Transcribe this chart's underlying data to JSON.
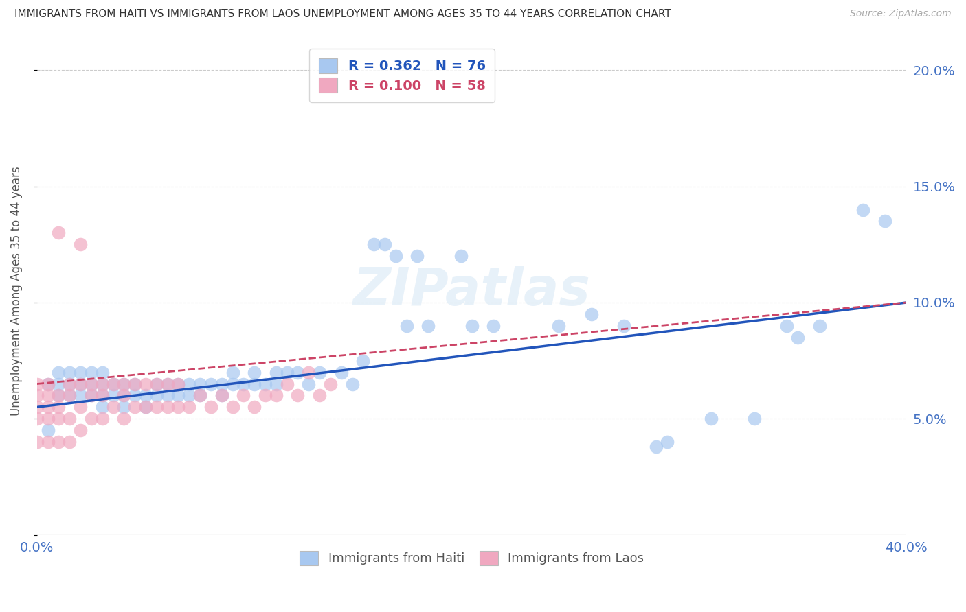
{
  "title": "IMMIGRANTS FROM HAITI VS IMMIGRANTS FROM LAOS UNEMPLOYMENT AMONG AGES 35 TO 44 YEARS CORRELATION CHART",
  "source": "Source: ZipAtlas.com",
  "ylabel": "Unemployment Among Ages 35 to 44 years",
  "xlim": [
    0.0,
    0.4
  ],
  "ylim": [
    0.0,
    0.21
  ],
  "xticks": [
    0.0,
    0.05,
    0.1,
    0.15,
    0.2,
    0.25,
    0.3,
    0.35,
    0.4
  ],
  "yticks": [
    0.0,
    0.05,
    0.1,
    0.15,
    0.2
  ],
  "haiti_color": "#a8c8f0",
  "laos_color": "#f0a8c0",
  "haiti_line_color": "#2255bb",
  "laos_line_color": "#cc4466",
  "haiti_R": 0.362,
  "haiti_N": 76,
  "laos_R": 0.1,
  "laos_N": 58,
  "haiti_x": [
    0.005,
    0.005,
    0.01,
    0.01,
    0.01,
    0.015,
    0.015,
    0.015,
    0.02,
    0.02,
    0.02,
    0.025,
    0.025,
    0.025,
    0.03,
    0.03,
    0.03,
    0.03,
    0.035,
    0.035,
    0.04,
    0.04,
    0.04,
    0.045,
    0.045,
    0.05,
    0.05,
    0.055,
    0.055,
    0.06,
    0.06,
    0.065,
    0.065,
    0.07,
    0.07,
    0.075,
    0.075,
    0.08,
    0.085,
    0.085,
    0.09,
    0.09,
    0.095,
    0.1,
    0.1,
    0.105,
    0.11,
    0.11,
    0.115,
    0.12,
    0.125,
    0.13,
    0.14,
    0.145,
    0.15,
    0.155,
    0.16,
    0.165,
    0.17,
    0.18,
    0.2,
    0.21,
    0.24,
    0.27,
    0.29,
    0.31,
    0.33,
    0.35,
    0.36,
    0.38,
    0.39,
    0.285,
    0.345,
    0.195,
    0.255,
    0.175
  ],
  "haiti_y": [
    0.065,
    0.045,
    0.06,
    0.065,
    0.07,
    0.06,
    0.065,
    0.07,
    0.06,
    0.065,
    0.07,
    0.06,
    0.065,
    0.07,
    0.055,
    0.06,
    0.065,
    0.07,
    0.06,
    0.065,
    0.055,
    0.06,
    0.065,
    0.06,
    0.065,
    0.055,
    0.06,
    0.06,
    0.065,
    0.06,
    0.065,
    0.06,
    0.065,
    0.06,
    0.065,
    0.06,
    0.065,
    0.065,
    0.06,
    0.065,
    0.065,
    0.07,
    0.065,
    0.065,
    0.07,
    0.065,
    0.065,
    0.07,
    0.07,
    0.07,
    0.065,
    0.07,
    0.07,
    0.065,
    0.075,
    0.125,
    0.125,
    0.12,
    0.09,
    0.09,
    0.09,
    0.09,
    0.09,
    0.09,
    0.04,
    0.05,
    0.05,
    0.085,
    0.09,
    0.14,
    0.135,
    0.038,
    0.09,
    0.12,
    0.095,
    0.12
  ],
  "laos_x": [
    0.0,
    0.0,
    0.0,
    0.0,
    0.0,
    0.005,
    0.005,
    0.005,
    0.005,
    0.005,
    0.01,
    0.01,
    0.01,
    0.01,
    0.015,
    0.015,
    0.015,
    0.015,
    0.02,
    0.02,
    0.02,
    0.025,
    0.025,
    0.025,
    0.03,
    0.03,
    0.03,
    0.035,
    0.035,
    0.04,
    0.04,
    0.04,
    0.045,
    0.045,
    0.05,
    0.05,
    0.055,
    0.055,
    0.06,
    0.06,
    0.065,
    0.065,
    0.07,
    0.075,
    0.08,
    0.085,
    0.09,
    0.095,
    0.1,
    0.105,
    0.11,
    0.115,
    0.12,
    0.125,
    0.13,
    0.135,
    0.01,
    0.02
  ],
  "laos_y": [
    0.04,
    0.05,
    0.055,
    0.06,
    0.065,
    0.04,
    0.05,
    0.055,
    0.06,
    0.065,
    0.04,
    0.05,
    0.055,
    0.06,
    0.04,
    0.05,
    0.06,
    0.065,
    0.045,
    0.055,
    0.065,
    0.05,
    0.06,
    0.065,
    0.05,
    0.06,
    0.065,
    0.055,
    0.065,
    0.05,
    0.06,
    0.065,
    0.055,
    0.065,
    0.055,
    0.065,
    0.055,
    0.065,
    0.055,
    0.065,
    0.055,
    0.065,
    0.055,
    0.06,
    0.055,
    0.06,
    0.055,
    0.06,
    0.055,
    0.06,
    0.06,
    0.065,
    0.06,
    0.07,
    0.06,
    0.065,
    0.13,
    0.125
  ],
  "watermark": "ZIPatlas",
  "background_color": "#ffffff",
  "grid_color": "#cccccc",
  "haiti_line_start_x": 0.0,
  "haiti_line_start_y": 0.055,
  "haiti_line_end_x": 0.4,
  "haiti_line_end_y": 0.1,
  "laos_line_start_x": 0.0,
  "laos_line_start_y": 0.065,
  "laos_line_end_x": 0.4,
  "laos_line_end_y": 0.1
}
